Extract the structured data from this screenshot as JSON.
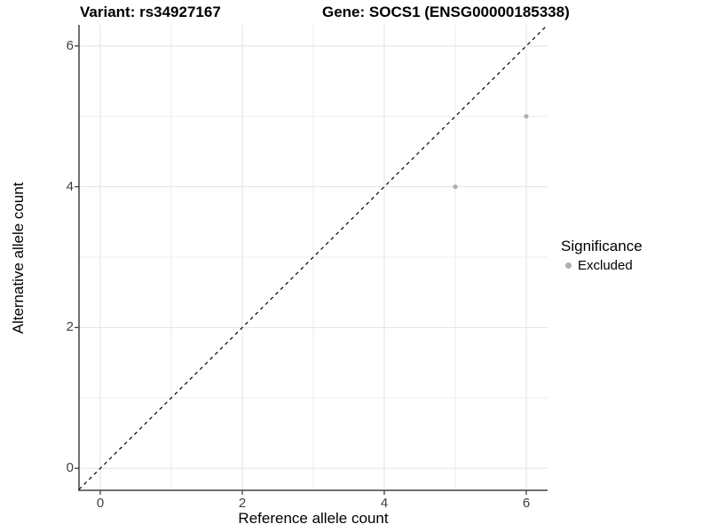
{
  "chart_data": {
    "type": "scatter",
    "title_left": "Variant: rs34927167",
    "title_right": "Gene: SOCS1 (ENSG00000185338)",
    "xlabel": "Reference allele count",
    "ylabel": "Alternative allele count",
    "xlim": [
      -0.3,
      6.3
    ],
    "ylim": [
      -0.3,
      6.3
    ],
    "x_ticks": [
      0,
      2,
      4,
      6
    ],
    "y_ticks": [
      0,
      2,
      4,
      6
    ],
    "grid": {
      "visible": true,
      "major": [
        0,
        2,
        4,
        6
      ],
      "minor": [
        1,
        3,
        5
      ],
      "major_color": "#e3e3e3",
      "minor_color": "#eeeeee"
    },
    "series": [
      {
        "name": "Excluded",
        "color": "#b0b0b0",
        "points": [
          {
            "x": 5,
            "y": 4
          },
          {
            "x": 6,
            "y": 5
          }
        ]
      }
    ],
    "reference_line": {
      "type": "identity",
      "style": "dashed",
      "color": "#000000",
      "from": [
        -0.3,
        -0.3
      ],
      "to": [
        6.3,
        6.3
      ]
    },
    "legend": {
      "title": "Significance",
      "position": "right",
      "items": [
        {
          "label": "Excluded",
          "color": "#b0b0b0"
        }
      ]
    },
    "axis_color": "#404040",
    "background": "#ffffff"
  }
}
